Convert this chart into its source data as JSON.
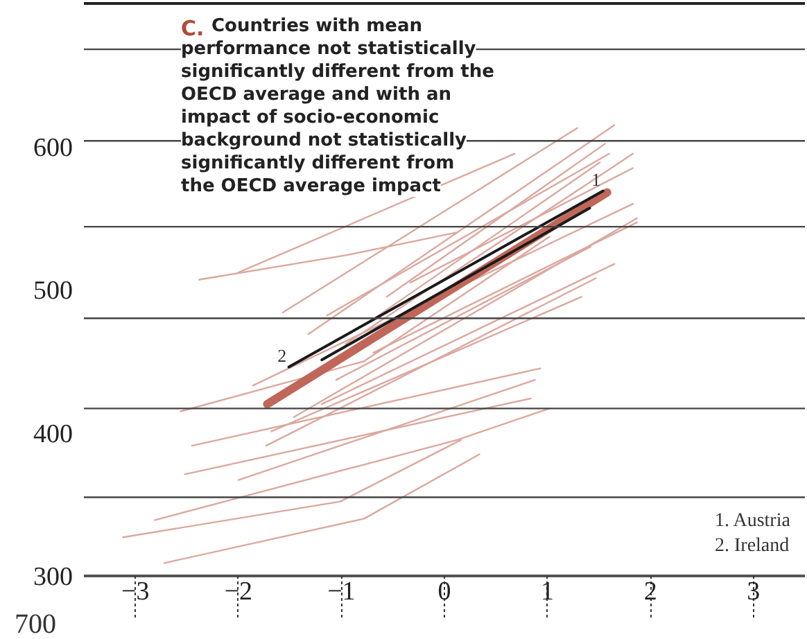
{
  "chart_data": {
    "type": "line",
    "title": "C. Countries with mean performance not statistically significantly different from the OECD average and with an impact of socio-economic background not statistically significantly different from the OECD average impact",
    "xlim": [
      -3.5,
      3.5
    ],
    "ylim": [
      300,
      700
    ],
    "xticks": [
      -3,
      -2,
      -1,
      0,
      1,
      2,
      3
    ],
    "yticks": [
      300,
      400,
      500,
      600
    ],
    "grid": false,
    "line_style": "solid",
    "ref_lines": [
      {
        "axis": "y",
        "value": 668,
        "color": "#444444"
      },
      {
        "axis": "y",
        "value": 604,
        "color": "#444444"
      },
      {
        "axis": "y",
        "value": 544,
        "color": "#444444"
      },
      {
        "axis": "y",
        "value": 480,
        "color": "#444444"
      },
      {
        "axis": "y",
        "value": 417,
        "color": "#444444"
      },
      {
        "axis": "y",
        "value": 355,
        "color": "#444444"
      }
    ],
    "annotations": [
      {
        "text": "1",
        "x": 1.54,
        "y": 569
      },
      {
        "text": "2",
        "x": -1.51,
        "y": 446
      },
      "1.  Austria",
      "2.  Ireland",
      "700"
    ],
    "series": [
      {
        "color": "#dba89e",
        "x": [
          -2.38,
          -0.96,
          0.12
        ],
        "values": [
          507,
          524,
          540
        ]
      },
      {
        "color": "#dba89e",
        "x": [
          -2.0,
          0.68
        ],
        "values": [
          512,
          595
        ]
      },
      {
        "color": "#dba89e",
        "x": [
          -1.57,
          1.29
        ],
        "values": [
          484,
          613
        ]
      },
      {
        "color": "#dba89e",
        "x": [
          -1.32,
          1.65
        ],
        "values": [
          469,
          615
        ]
      },
      {
        "color": "#dba89e",
        "x": [
          -1.14,
          1.6
        ],
        "values": [
          482,
          595
        ]
      },
      {
        "color": "#dba89e",
        "x": [
          -0.96,
          1.83
        ],
        "values": [
          462,
          595
        ]
      },
      {
        "color": "#dba89e",
        "x": [
          -0.78,
          1.51
        ],
        "values": [
          475,
          589
        ]
      },
      {
        "color": "#dba89e",
        "x": [
          -2.56,
          -0.78,
          1.02
        ],
        "values": [
          415,
          450,
          537
        ]
      },
      {
        "color": "#dba89e",
        "x": [
          -1.86,
          1.83
        ],
        "values": [
          433,
          560
        ]
      },
      {
        "color": "#dba89e",
        "x": [
          -1.68,
          1.33
        ],
        "values": [
          401,
          495
        ]
      },
      {
        "color": "#dba89e",
        "x": [
          -2.45,
          0.93
        ],
        "values": [
          391,
          445
        ]
      },
      {
        "color": "#dba89e",
        "x": [
          -2.52,
          0.84
        ],
        "values": [
          371,
          424
        ]
      },
      {
        "color": "#dba89e",
        "x": [
          -2.0,
          0.88
        ],
        "values": [
          367,
          437
        ]
      },
      {
        "color": "#dba89e",
        "x": [
          -2.81,
          0.12,
          1.02
        ],
        "values": [
          339,
          395,
          417
        ]
      },
      {
        "color": "#dba89e",
        "x": [
          -3.12,
          -1.01,
          0.16
        ],
        "values": [
          327,
          352,
          395
        ]
      },
      {
        "color": "#dba89e",
        "x": [
          -2.72,
          -0.78,
          0.34
        ],
        "values": [
          309,
          340,
          385
        ]
      },
      {
        "color": "#dba89e",
        "x": [
          -1.19,
          1.65
        ],
        "values": [
          420,
          518
        ]
      },
      {
        "color": "#dba89e",
        "x": [
          -1.46,
          1.87
        ],
        "values": [
          411,
          550
        ]
      },
      {
        "color": "#dba89e",
        "x": [
          -1.73,
          1.47
        ],
        "values": [
          391,
          508
        ]
      },
      {
        "color": "#dba89e",
        "x": [
          -0.69,
          1.87
        ],
        "values": [
          456,
          547
        ]
      },
      {
        "color": "#dba89e",
        "x": [
          -0.33,
          1.83
        ],
        "values": [
          505,
          585
        ]
      },
      {
        "color": "#dba89e",
        "x": [
          -0.56,
          1.56
        ],
        "values": [
          495,
          602
        ]
      },
      {
        "color": "#dba89e",
        "x": [
          -1.05,
          1.42
        ],
        "values": [
          437,
          530
        ]
      },
      {
        "color": "#c0675a",
        "x": [
          -1.72,
          1.58
        ],
        "values": [
          420,
          568
        ]
      },
      {
        "color": "#1a1a1a",
        "x": [
          -1.51,
          1.54
        ],
        "values": [
          446,
          569
        ]
      },
      {
        "color": "#1a1a1a",
        "x": [
          -1.19,
          1.41
        ],
        "values": [
          451,
          557
        ]
      }
    ]
  }
}
